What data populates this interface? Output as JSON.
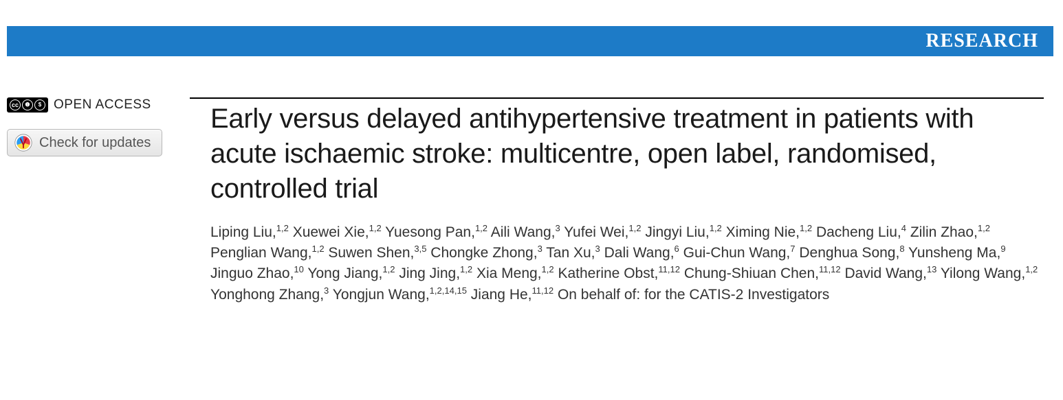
{
  "banner": {
    "label": "RESEARCH",
    "bg": "#1d7bc7",
    "fg": "#ffffff"
  },
  "sidebar": {
    "open_access": {
      "label": "OPEN ACCESS"
    },
    "updates": {
      "label": "Check for updates"
    }
  },
  "article": {
    "title": "Early versus delayed antihypertensive treatment in patients with acute ischaemic stroke: multicentre, open label, randomised, controlled trial",
    "authors": [
      {
        "name": "Liping Liu",
        "aff": "1,2"
      },
      {
        "name": "Xuewei Xie",
        "aff": "1,2"
      },
      {
        "name": "Yuesong Pan",
        "aff": "1,2"
      },
      {
        "name": "Aili Wang",
        "aff": "3"
      },
      {
        "name": "Yufei Wei",
        "aff": "1,2"
      },
      {
        "name": "Jingyi Liu",
        "aff": "1,2"
      },
      {
        "name": "Ximing Nie",
        "aff": "1,2"
      },
      {
        "name": "Dacheng Liu",
        "aff": "4"
      },
      {
        "name": "Zilin Zhao",
        "aff": "1,2"
      },
      {
        "name": "Penglian Wang",
        "aff": "1,2"
      },
      {
        "name": "Suwen Shen",
        "aff": "3,5"
      },
      {
        "name": "Chongke Zhong",
        "aff": "3"
      },
      {
        "name": "Tan Xu",
        "aff": "3"
      },
      {
        "name": "Dali Wang",
        "aff": "6"
      },
      {
        "name": "Gui-Chun Wang",
        "aff": "7"
      },
      {
        "name": "Denghua Song",
        "aff": "8"
      },
      {
        "name": "Yunsheng Ma",
        "aff": "9"
      },
      {
        "name": "Jinguo Zhao",
        "aff": "10"
      },
      {
        "name": "Yong Jiang",
        "aff": "1,2"
      },
      {
        "name": "Jing Jing",
        "aff": "1,2"
      },
      {
        "name": "Xia Meng",
        "aff": "1,2"
      },
      {
        "name": "Katherine Obst",
        "aff": "11,12"
      },
      {
        "name": "Chung-Shiuan Chen",
        "aff": "11,12"
      },
      {
        "name": "David Wang",
        "aff": "13"
      },
      {
        "name": "Yilong Wang",
        "aff": "1,2"
      },
      {
        "name": "Yonghong Zhang",
        "aff": "3"
      },
      {
        "name": "Yongjun Wang",
        "aff": "1,2,14,15"
      },
      {
        "name": "Jiang He",
        "aff": "11,12"
      }
    ],
    "behalf": "On behalf of: for the CATIS-2 Investigators"
  },
  "colors": {
    "text": "#1a1a1a",
    "author_text": "#333333",
    "button_border": "#b7b7b7",
    "button_text": "#555555"
  }
}
